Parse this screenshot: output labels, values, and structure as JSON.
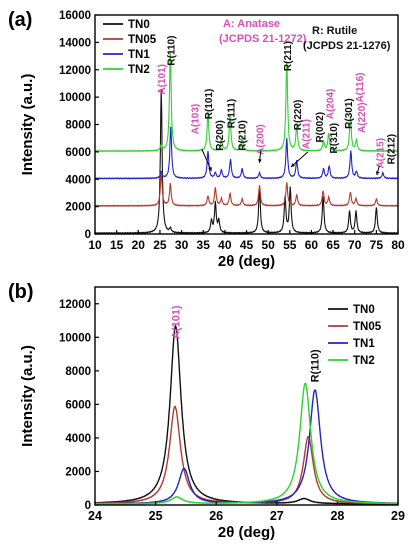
{
  "chart_data": [
    {
      "type": "line",
      "panel_label": "(a)",
      "xlabel": "2θ (deg)",
      "ylabel": "Intensity (a.u.)",
      "xlim": [
        10,
        80
      ],
      "ylim": [
        0,
        16000
      ],
      "xticks": [
        "10",
        "15",
        "20",
        "25",
        "30",
        "35",
        "40",
        "45",
        "50",
        "55",
        "60",
        "65",
        "70",
        "75",
        "80"
      ],
      "yticks": [
        "0",
        "2000",
        "4000",
        "6000",
        "8000",
        "10000",
        "12000",
        "14000",
        "16000"
      ],
      "legend_position": "top-left",
      "series": [
        {
          "name": "TN0",
          "color": "#111111",
          "offset": 0,
          "peaks": [
            [
              25.3,
              10500
            ],
            [
              27.4,
              300
            ],
            [
              36.9,
              900
            ],
            [
              37.8,
              2200
            ],
            [
              38.6,
              900
            ],
            [
              48.0,
              3300
            ],
            [
              53.9,
              2600
            ],
            [
              55.1,
              3300
            ],
            [
              62.7,
              2700
            ],
            [
              68.8,
              1600
            ],
            [
              70.3,
              1600
            ],
            [
              75.0,
              1900
            ]
          ]
        },
        {
          "name": "TN05",
          "color": "#b23a2e",
          "offset": 2000,
          "peaks": [
            [
              25.3,
              2400
            ],
            [
              27.4,
              1600
            ],
            [
              36.1,
              700
            ],
            [
              37.8,
              1300
            ],
            [
              39.2,
              500
            ],
            [
              41.2,
              900
            ],
            [
              44.0,
              500
            ],
            [
              48.0,
              1500
            ],
            [
              54.3,
              1700
            ],
            [
              56.6,
              800
            ],
            [
              62.7,
              1100
            ],
            [
              64.0,
              600
            ],
            [
              69.0,
              1000
            ],
            [
              70.3,
              500
            ],
            [
              75.0,
              500
            ]
          ]
        },
        {
          "name": "TN1",
          "color": "#2323c8",
          "offset": 4000,
          "peaks": [
            [
              25.3,
              500
            ],
            [
              27.5,
              3800
            ],
            [
              36.1,
              2000
            ],
            [
              37.8,
              400
            ],
            [
              39.2,
              600
            ],
            [
              41.3,
              1400
            ],
            [
              44.0,
              700
            ],
            [
              48.0,
              400
            ],
            [
              54.3,
              2900
            ],
            [
              56.6,
              1300
            ],
            [
              62.8,
              700
            ],
            [
              64.1,
              900
            ],
            [
              69.1,
              2000
            ],
            [
              70.4,
              500
            ],
            [
              76.5,
              400
            ]
          ]
        },
        {
          "name": "TN2",
          "color": "#2fd12f",
          "offset": 6000,
          "peaks": [
            [
              25.3,
              400
            ],
            [
              27.4,
              7300
            ],
            [
              36.1,
              2800
            ],
            [
              39.2,
              800
            ],
            [
              41.2,
              2600
            ],
            [
              44.0,
              1000
            ],
            [
              54.3,
              6500
            ],
            [
              56.6,
              1800
            ],
            [
              62.8,
              700
            ],
            [
              64.0,
              1300
            ],
            [
              69.0,
              2500
            ],
            [
              70.4,
              800
            ]
          ]
        }
      ],
      "annotations": {
        "anatase_title": "A: Anatase",
        "anatase_ref": "(JCPDS 21-1272)",
        "rutile_title": "R: Rutile",
        "rutile_ref": "(JCPDS 21-1276)",
        "peak_labels": [
          {
            "text": "A(101)",
            "x": 25.3,
            "y": 11300,
            "color": "#d94fb8"
          },
          {
            "text": "R(110)",
            "x": 27.5,
            "y": 13400,
            "color": "#111111"
          },
          {
            "text": "A(103)",
            "x": 33.0,
            "y": 8400,
            "color": "#d94fb8"
          },
          {
            "text": "R(101)",
            "x": 36.1,
            "y": 9500,
            "color": "#111111"
          },
          {
            "text": "R(200)",
            "x": 38.7,
            "y": 7200,
            "color": "#111111"
          },
          {
            "text": "R(111)",
            "x": 41.3,
            "y": 8800,
            "color": "#111111"
          },
          {
            "text": "R(210)",
            "x": 43.8,
            "y": 7200,
            "color": "#111111"
          },
          {
            "text": "A(200)",
            "x": 48.0,
            "y": 6900,
            "color": "#d94fb8"
          },
          {
            "text": "R(211)",
            "x": 54.4,
            "y": 13000,
            "color": "#111111"
          },
          {
            "text": "R(220)",
            "x": 56.7,
            "y": 8700,
            "color": "#111111"
          },
          {
            "text": "A(211)",
            "x": 58.6,
            "y": 7300,
            "color": "#d94fb8"
          },
          {
            "text": "R(002)",
            "x": 61.7,
            "y": 7800,
            "color": "#111111"
          },
          {
            "text": "A(204)",
            "x": 64.2,
            "y": 9500,
            "color": "#d94fb8"
          },
          {
            "text": "R(310)",
            "x": 65.0,
            "y": 7000,
            "color": "#111111"
          },
          {
            "text": "R(301)",
            "x": 68.5,
            "y": 8800,
            "color": "#111111"
          },
          {
            "text": "A(116)",
            "x": 71.0,
            "y": 10700,
            "color": "#d94fb8"
          },
          {
            "text": "A(220)",
            "x": 71.4,
            "y": 8500,
            "color": "#d94fb8"
          },
          {
            "text": "A(215)",
            "x": 75.7,
            "y": 5900,
            "color": "#d94fb8"
          },
          {
            "text": "R(212)",
            "x": 78.3,
            "y": 6200,
            "color": "#111111"
          }
        ],
        "arrows": [
          {
            "from": [
              34.7,
              6200
            ],
            "to": [
              36.9,
              4600
            ]
          },
          {
            "from": [
              48.3,
              6100
            ],
            "to": [
              48.0,
              5200
            ]
          },
          {
            "from": [
              59.2,
              6000
            ],
            "to": [
              55.3,
              4900
            ]
          },
          {
            "from": [
              75.7,
              5000
            ],
            "to": [
              75.1,
              4300
            ]
          }
        ]
      }
    },
    {
      "type": "line",
      "panel_label": "(b)",
      "xlabel": "2θ (deg)",
      "ylabel": "Intensity (a.u.)",
      "xlim": [
        24,
        29
      ],
      "ylim": [
        0,
        13000
      ],
      "xticks": [
        "24",
        "25",
        "26",
        "27",
        "28",
        "29"
      ],
      "yticks": [
        "0",
        "2000",
        "4000",
        "6000",
        "8000",
        "10000",
        "12000"
      ],
      "legend_position": "top-right",
      "series": [
        {
          "name": "TN0",
          "color": "#111111",
          "peaks": [
            [
              25.33,
              10600,
              0.11
            ],
            [
              27.45,
              300,
              0.12
            ]
          ]
        },
        {
          "name": "TN05",
          "color": "#b23a2e",
          "peaks": [
            [
              25.32,
              5800,
              0.11
            ],
            [
              27.52,
              4000,
              0.1
            ]
          ]
        },
        {
          "name": "TN1",
          "color": "#2323c8",
          "peaks": [
            [
              25.47,
              2100,
              0.11
            ],
            [
              27.63,
              6800,
              0.11
            ]
          ]
        },
        {
          "name": "TN2",
          "color": "#2fd12f",
          "peaks": [
            [
              25.35,
              400,
              0.12
            ],
            [
              27.47,
              7200,
              0.11
            ]
          ]
        }
      ],
      "annotations": {
        "peak_labels": [
          {
            "text": "A(101)",
            "x": 25.33,
            "y": 10900,
            "color": "#d94fb8"
          },
          {
            "text": "R(110)",
            "x": 27.62,
            "y": 8300,
            "color": "#111111"
          }
        ]
      }
    }
  ]
}
